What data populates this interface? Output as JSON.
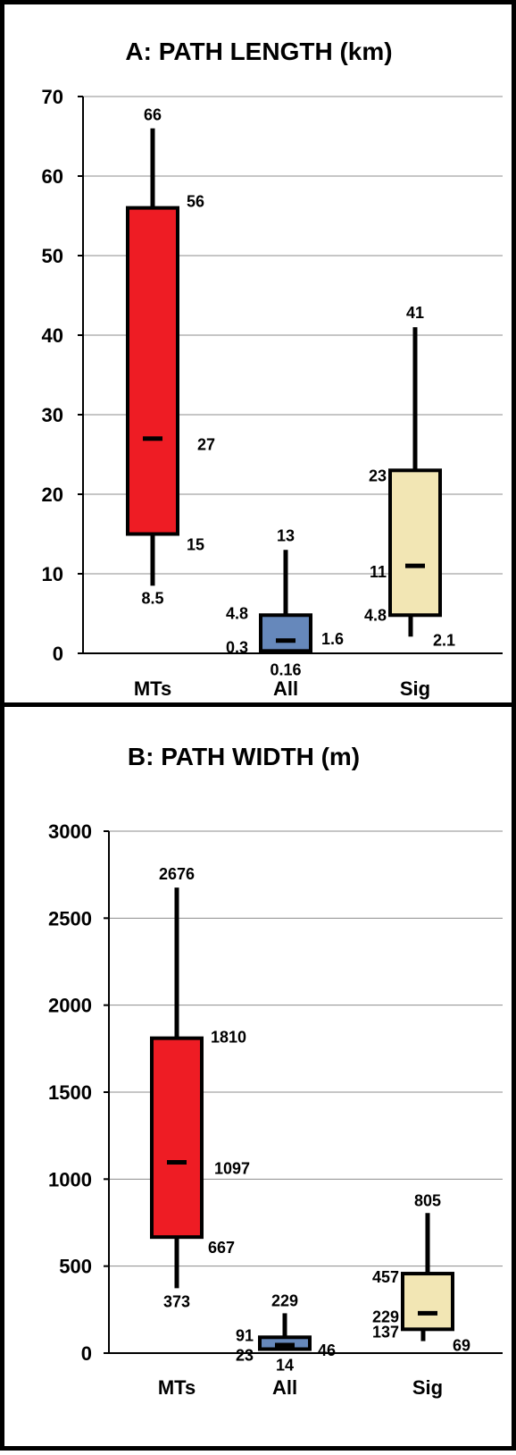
{
  "chart_data": [
    {
      "type": "box",
      "title": "A: PATH LENGTH (km)",
      "categories": [
        "MTs",
        "All",
        "Sig"
      ],
      "ylim": [
        0,
        70
      ],
      "yticks": [
        0,
        10,
        20,
        30,
        40,
        50,
        60,
        70
      ],
      "grid": true,
      "colors": [
        "#ee1c24",
        "#6688bb",
        "#f2e6b4"
      ],
      "boxes": [
        {
          "category": "MTs",
          "min": null,
          "q1": 15,
          "median": 27,
          "q3": 56,
          "max": 66,
          "whisker_low": 8.5,
          "labels": {
            "max": "66",
            "q3": "56",
            "median": "27",
            "q1": "15",
            "whisker_low": "8.5"
          }
        },
        {
          "category": "All",
          "min": 0.16,
          "q1": 0.3,
          "median": 1.6,
          "q3": 4.8,
          "max": 13,
          "whisker_low": null,
          "labels": {
            "max": "13",
            "q3": "4.8",
            "median": "1.6",
            "q1": "0.3",
            "min": "0.16"
          }
        },
        {
          "category": "Sig",
          "min": 2.1,
          "q1": 4.8,
          "median": 11,
          "q3": 23,
          "max": 41,
          "whisker_low": 2.1,
          "labels": {
            "max": "41",
            "q3": "23",
            "median": "11",
            "q1": "4.8",
            "min": "2.1"
          }
        }
      ]
    },
    {
      "type": "box",
      "title": "B: PATH WIDTH (m)",
      "categories": [
        "MTs",
        "All",
        "Sig"
      ],
      "ylim": [
        0,
        3000
      ],
      "yticks": [
        0,
        500,
        1000,
        1500,
        2000,
        2500,
        3000
      ],
      "grid": true,
      "colors": [
        "#ee1c24",
        "#6688bb",
        "#f2e6b4"
      ],
      "boxes": [
        {
          "category": "MTs",
          "min": null,
          "q1": 667,
          "median": 1097,
          "q3": 1810,
          "max": 2676,
          "whisker_low": 373,
          "labels": {
            "max": "2676",
            "q3": "1810",
            "median": "1097",
            "q1": "667",
            "whisker_low": "373"
          }
        },
        {
          "category": "All",
          "min": 14,
          "q1": 23,
          "median": 46,
          "q3": 91,
          "max": 229,
          "whisker_low": null,
          "labels": {
            "max": "229",
            "q3": "91",
            "median": "46",
            "q1": "23",
            "min": "14"
          }
        },
        {
          "category": "Sig",
          "min": 69,
          "q1": 137,
          "median": 229,
          "q3": 457,
          "max": 805,
          "whisker_low": 69,
          "labels": {
            "max": "805",
            "q3": "457",
            "median": "229",
            "q1": "137",
            "min": "69"
          }
        }
      ]
    }
  ]
}
